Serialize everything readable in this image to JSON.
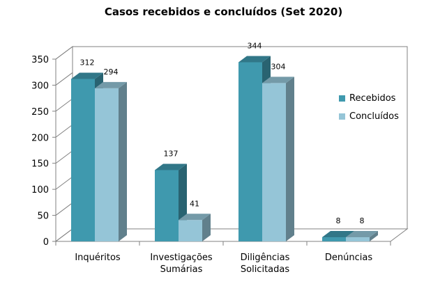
{
  "chart_data": {
    "type": "bar",
    "title": "Casos recebidos e concluídos (Set 2020)",
    "categories": [
      "Inquéritos",
      "Investigações Sumárias",
      "Diligências Solicitadas",
      "Denúncias"
    ],
    "category_lines": [
      [
        "Inquéritos"
      ],
      [
        "Investigações",
        "Sumárias"
      ],
      [
        "Diligências",
        "Solicitadas"
      ],
      [
        "Denúncias"
      ]
    ],
    "series": [
      {
        "name": "Recebidos",
        "values": [
          312,
          137,
          344,
          8
        ],
        "color": "#3f99ae"
      },
      {
        "name": "Concluídos",
        "values": [
          294,
          41,
          304,
          8
        ],
        "color": "#95c5d7"
      }
    ],
    "ylim": [
      0,
      350
    ],
    "yticks": [
      0,
      50,
      100,
      150,
      200,
      250,
      300,
      350
    ],
    "grid": false,
    "legend": "right",
    "xlabel": "",
    "ylabel": ""
  }
}
